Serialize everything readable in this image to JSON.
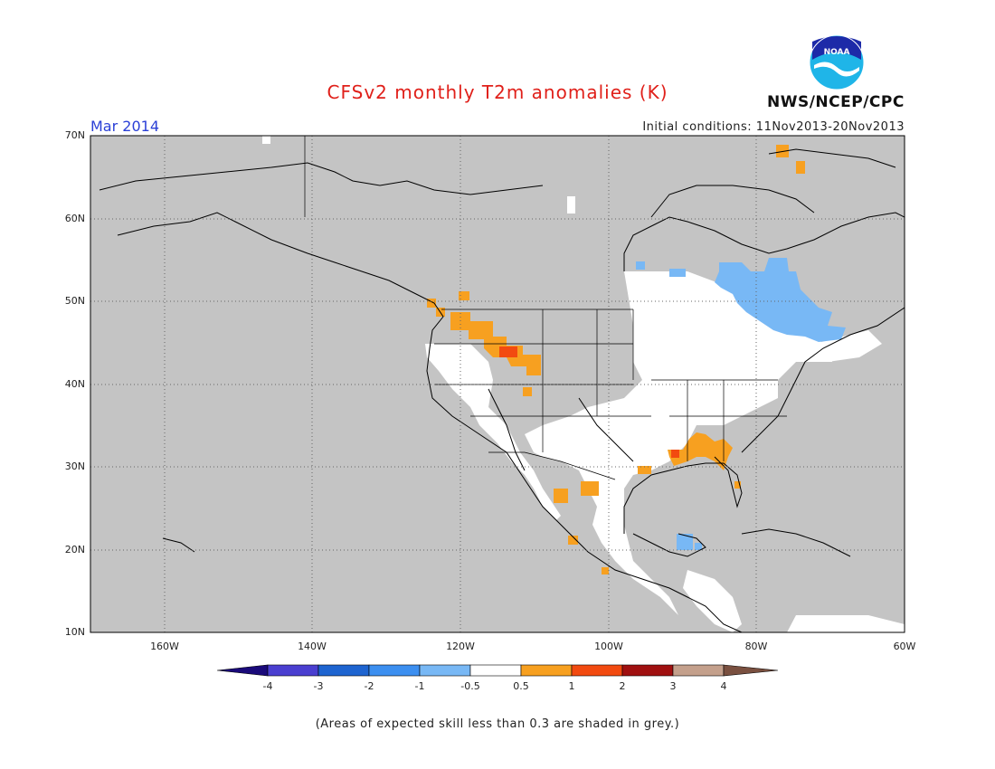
{
  "title": "CFSv2 monthly T2m anomalies (K)",
  "month": "Mar 2014",
  "initial_conditions": "Initial conditions: 11Nov2013-20Nov2013",
  "agency": "NWS/NCEP/CPC",
  "logo_text": "NOAA",
  "footnote": "(Areas of expected skill less than 0.3 are shaded in grey.)",
  "map": {
    "region": "North America",
    "lon_range": [
      -170,
      -60
    ],
    "lat_range": [
      10,
      70
    ],
    "lat_labels": [
      "70N",
      "60N",
      "50N",
      "40N",
      "30N",
      "20N",
      "10N"
    ],
    "lon_labels": [
      "160W",
      "140W",
      "120W",
      "100W",
      "80W",
      "60W"
    ],
    "background_color": "#c4c4c4",
    "grid": "dotted"
  },
  "colorbar": {
    "labels": [
      "-4",
      "-3",
      "-2",
      "-1",
      "-0.5",
      "0.5",
      "1",
      "2",
      "3",
      "4"
    ],
    "colors": [
      "#1a0a7a",
      "#4a3fd0",
      "#1e64d0",
      "#3c8ff0",
      "#78b8f5",
      "#ffffff",
      "#f7a020",
      "#f24a10",
      "#a01010",
      "#c4a08c",
      "#7a5040"
    ]
  },
  "anomaly_regions": [
    {
      "name": "cool-eastern-canada",
      "value": -0.75,
      "color": "#78b8f5"
    },
    {
      "name": "warm-pacific-northwest",
      "value": 0.75,
      "color": "#f7a020"
    },
    {
      "name": "warm-idaho-core",
      "value": 1.5,
      "color": "#f24a10"
    },
    {
      "name": "warm-gulf-coast",
      "value": 0.75,
      "color": "#f7a020"
    },
    {
      "name": "cool-yucatan",
      "value": -0.75,
      "color": "#78b8f5"
    },
    {
      "name": "near-normal-skill-areas",
      "value": 0,
      "color": "#ffffff"
    }
  ]
}
